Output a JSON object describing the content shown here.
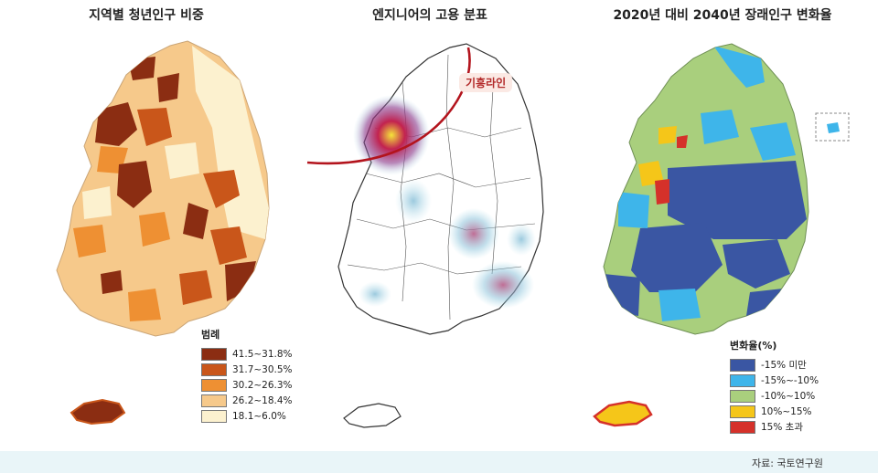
{
  "panels": {
    "youth": {
      "title": "지역별 청년인구 비중",
      "legend_title": "범례",
      "legend": [
        {
          "label": "41.5~31.8%",
          "color": "#8b2d12"
        },
        {
          "label": "31.7~30.5%",
          "color": "#c9561a"
        },
        {
          "label": "30.2~26.3%",
          "color": "#ee9033"
        },
        {
          "label": "26.2~18.4%",
          "color": "#f6c98b"
        },
        {
          "label": "18.1~6.0%",
          "color": "#fcf1cf"
        }
      ]
    },
    "engineer": {
      "title": "엔지니어의 고용 분표",
      "line_label": "기흥라인"
    },
    "change": {
      "title": "2020년 대비 2040년 장래인구 변화율",
      "legend_title": "변화율(%)",
      "legend": [
        {
          "label": "-15% 미만",
          "color": "#3a56a3"
        },
        {
          "label": "-15%~-10%",
          "color": "#3eb5ea"
        },
        {
          "label": "-10%~10%",
          "color": "#a9cf7d"
        },
        {
          "label": "10%~15%",
          "color": "#f5c619"
        },
        {
          "label": "15% 초과",
          "color": "#d5312a"
        }
      ]
    }
  },
  "source": "자료: 국토연구원"
}
